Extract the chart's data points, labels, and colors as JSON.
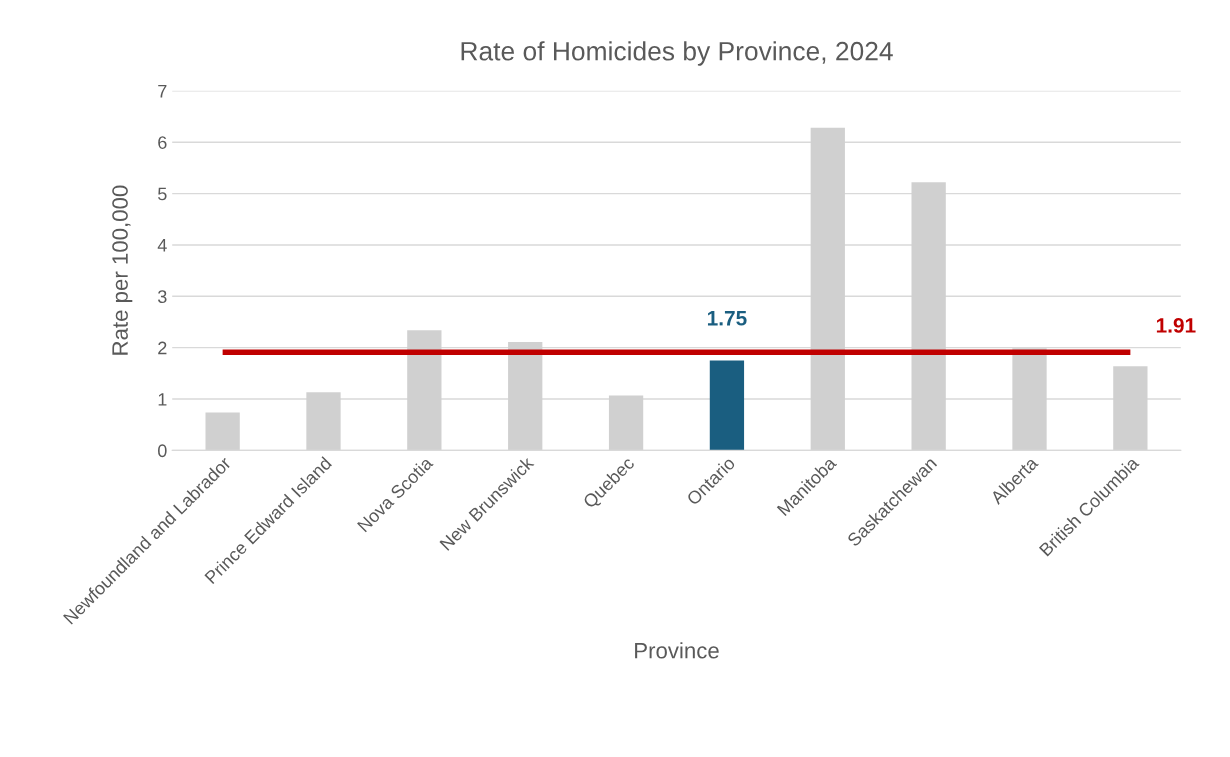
{
  "chart_data": {
    "type": "bar",
    "title": "Rate of Homicides by Province, 2024",
    "xlabel": "Province",
    "ylabel": "Rate per 100,000",
    "categories": [
      "Newfoundland and Labrador",
      "Prince Edward Island",
      "Nova Scotia",
      "New Brunswick",
      "Quebec",
      "Ontario",
      "Manitoba",
      "Saskatchewan",
      "Alberta",
      "British Columbia"
    ],
    "series": [
      {
        "colors": [
          "#d0d0d0",
          "#d0d0d0",
          "#d0d0d0",
          "#d0d0d0",
          "#d0d0d0",
          "#1a5e80",
          "#d0d0d0",
          "#d0d0d0",
          "#d0d0d0",
          "#d0d0d0"
        ],
        "values": [
          0.74,
          1.13,
          2.34,
          2.11,
          1.07,
          1.75,
          6.28,
          5.22,
          1.99,
          1.64
        ],
        "value_labels": [
          null,
          null,
          null,
          null,
          null,
          "1.75",
          null,
          null,
          null,
          null
        ]
      },
      {
        "type": "line",
        "color": "#c00000",
        "values": [
          1.91,
          1.91,
          1.91,
          1.91,
          1.91,
          1.91,
          1.91,
          1.91,
          1.91,
          1.91
        ],
        "value_labels": [
          null,
          null,
          null,
          null,
          null,
          null,
          null,
          null,
          null,
          "1.91"
        ]
      }
    ],
    "ylim": [
      0,
      7
    ],
    "yticks": [
      0,
      1,
      2,
      3,
      4,
      5,
      6,
      7
    ],
    "grid": "y",
    "legend": false,
    "marker": "none",
    "line_style": "solid"
  }
}
